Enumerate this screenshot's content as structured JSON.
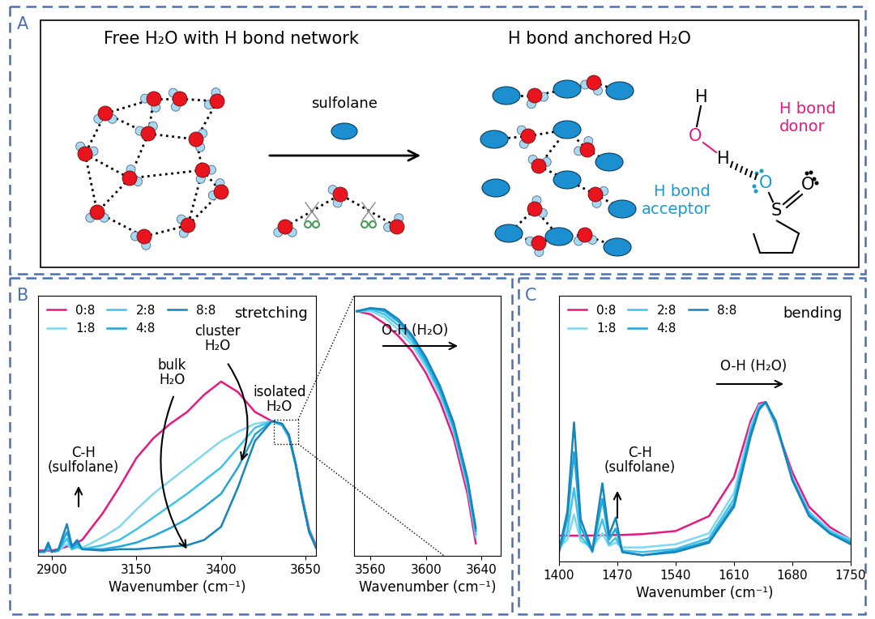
{
  "diagram": {
    "panel_labels": [
      "A",
      "B",
      "C"
    ],
    "left_title": "Free H₂O with H bond network",
    "right_title": "H bond anchored H₂O",
    "arrow_label": "sulfolane",
    "donor_label": "H bond\ndonor",
    "acceptor_label": "H bond\nacceptor",
    "structure_atoms": [
      "H",
      "O",
      "H",
      "O",
      "S",
      "O"
    ]
  },
  "chart_data": [
    {
      "type": "line",
      "title": "stretching",
      "x_label": "Wavenumber (cm⁻¹)",
      "x": [
        2860,
        2880,
        2890,
        2900,
        2920,
        2945,
        2960,
        2975,
        2990,
        3050,
        3100,
        3150,
        3200,
        3250,
        3300,
        3350,
        3400,
        3450,
        3500,
        3550,
        3580,
        3600,
        3620,
        3640,
        3660,
        3680
      ],
      "series": [
        {
          "name": "0:8",
          "color": "#e5197f",
          "values": [
            0.02,
            0.02,
            0.02,
            0.02,
            0.03,
            0.05,
            0.06,
            0.08,
            0.1,
            0.3,
            0.5,
            0.72,
            0.87,
            0.98,
            1.07,
            1.2,
            1.3,
            1.22,
            1.07,
            1.0,
            0.97,
            0.88,
            0.68,
            0.42,
            0.18,
            0.06
          ]
        },
        {
          "name": "1:8",
          "color": "#7fd8f0",
          "values": [
            0.01,
            0.01,
            0.04,
            0.01,
            0.02,
            0.07,
            0.03,
            0.04,
            0.04,
            0.12,
            0.2,
            0.33,
            0.45,
            0.55,
            0.65,
            0.75,
            0.85,
            0.92,
            0.98,
            1.0,
            0.97,
            0.88,
            0.67,
            0.41,
            0.17,
            0.05
          ]
        },
        {
          "name": "2:8",
          "color": "#3fc3ea",
          "values": [
            0.01,
            0.01,
            0.05,
            0.01,
            0.02,
            0.11,
            0.03,
            0.05,
            0.03,
            0.06,
            0.1,
            0.18,
            0.27,
            0.36,
            0.45,
            0.55,
            0.65,
            0.8,
            0.95,
            1.0,
            0.97,
            0.88,
            0.67,
            0.4,
            0.17,
            0.05
          ]
        },
        {
          "name": "4:8",
          "color": "#1fa6da",
          "values": [
            0.01,
            0.01,
            0.06,
            0.01,
            0.02,
            0.16,
            0.04,
            0.07,
            0.03,
            0.03,
            0.05,
            0.08,
            0.13,
            0.19,
            0.26,
            0.35,
            0.45,
            0.65,
            0.9,
            1.0,
            0.98,
            0.89,
            0.67,
            0.4,
            0.16,
            0.05
          ]
        },
        {
          "name": "8:8",
          "color": "#1684bd",
          "values": [
            0.01,
            0.02,
            0.08,
            0.01,
            0.03,
            0.22,
            0.05,
            0.1,
            0.03,
            0.02,
            0.03,
            0.03,
            0.04,
            0.05,
            0.06,
            0.1,
            0.2,
            0.5,
            0.85,
            1.0,
            0.98,
            0.9,
            0.68,
            0.4,
            0.16,
            0.04
          ]
        }
      ],
      "xlim": [
        2860,
        3680
      ],
      "xticks": [
        2900,
        3150,
        3400,
        3650
      ],
      "ylim": [
        -0.02,
        1.95
      ],
      "yticks": [],
      "tick_labels": "x",
      "grid": false,
      "legend": "upper left",
      "annotations": [
        "C-H\n(sulfolane)",
        "bulk\nH₂O",
        "cluster\nH₂O",
        "isolated\nH₂O"
      ]
    },
    {
      "type": "line",
      "x_label": "Wavenumber (cm⁻¹)",
      "x": [
        3550,
        3560,
        3570,
        3580,
        3590,
        3600,
        3610,
        3620,
        3630,
        3636
      ],
      "series": [
        {
          "color": "#e5197f",
          "values": [
            0.995,
            0.99,
            0.975,
            0.955,
            0.93,
            0.895,
            0.85,
            0.79,
            0.7,
            0.62
          ]
        },
        {
          "color": "#7fd8f0",
          "values": [
            0.995,
            0.995,
            0.985,
            0.965,
            0.94,
            0.905,
            0.86,
            0.8,
            0.71,
            0.63
          ]
        },
        {
          "color": "#3fc3ea",
          "values": [
            0.995,
            0.998,
            0.99,
            0.972,
            0.946,
            0.91,
            0.865,
            0.805,
            0.715,
            0.635
          ]
        },
        {
          "color": "#1fa6da",
          "values": [
            0.995,
            1.0,
            0.995,
            0.978,
            0.952,
            0.915,
            0.87,
            0.81,
            0.72,
            0.64
          ]
        },
        {
          "color": "#1684bd",
          "values": [
            0.995,
            1.0,
            0.998,
            0.982,
            0.956,
            0.92,
            0.875,
            0.815,
            0.725,
            0.645
          ]
        }
      ],
      "xlim": [
        3548,
        3654
      ],
      "xticks": [
        3560,
        3600,
        3640
      ],
      "ylim": [
        0.6,
        1.02
      ],
      "yticks": [],
      "tick_labels": "x",
      "grid": false,
      "annotations": [
        "O-H (H₂O)"
      ]
    },
    {
      "type": "line",
      "title": "bending",
      "x_label": "Wavenumber (cm⁻¹)",
      "x": [
        1400,
        1410,
        1418,
        1426,
        1440,
        1452,
        1460,
        1468,
        1476,
        1500,
        1540,
        1580,
        1610,
        1630,
        1640,
        1648,
        1660,
        1680,
        1700,
        1725,
        1750
      ],
      "series": [
        {
          "name": "0:8",
          "color": "#e5197f",
          "values": [
            0.145,
            0.145,
            0.145,
            0.145,
            0.146,
            0.147,
            0.148,
            0.15,
            0.15,
            0.155,
            0.175,
            0.27,
            0.52,
            0.88,
            0.99,
            1.0,
            0.85,
            0.55,
            0.33,
            0.2,
            0.12
          ]
        },
        {
          "name": "1:8",
          "color": "#7fd8f0",
          "values": [
            0.07,
            0.12,
            0.28,
            0.11,
            0.07,
            0.16,
            0.08,
            0.1,
            0.07,
            0.07,
            0.09,
            0.16,
            0.42,
            0.85,
            0.98,
            0.99,
            0.85,
            0.52,
            0.3,
            0.18,
            0.12
          ]
        },
        {
          "name": "2:8",
          "color": "#3fc3ea",
          "values": [
            0.05,
            0.17,
            0.45,
            0.14,
            0.05,
            0.25,
            0.09,
            0.13,
            0.05,
            0.04,
            0.06,
            0.13,
            0.38,
            0.82,
            0.97,
            1.0,
            0.86,
            0.51,
            0.29,
            0.17,
            0.11
          ]
        },
        {
          "name": "4:8",
          "color": "#1fa6da",
          "values": [
            0.04,
            0.25,
            0.68,
            0.2,
            0.04,
            0.38,
            0.12,
            0.19,
            0.04,
            0.02,
            0.05,
            0.11,
            0.35,
            0.8,
            0.96,
            1.0,
            0.87,
            0.5,
            0.28,
            0.16,
            0.1
          ]
        },
        {
          "name": "8:8",
          "color": "#1684bd",
          "values": [
            0.05,
            0.3,
            0.87,
            0.25,
            0.05,
            0.48,
            0.15,
            0.26,
            0.04,
            0.02,
            0.04,
            0.1,
            0.33,
            0.78,
            0.95,
            1.0,
            0.88,
            0.5,
            0.27,
            0.16,
            0.09
          ]
        }
      ],
      "xlim": [
        1400,
        1750
      ],
      "xticks": [
        1400,
        1470,
        1540,
        1610,
        1680,
        1750
      ],
      "ylim": [
        -0.02,
        1.68
      ],
      "yticks": [],
      "tick_labels": "x",
      "grid": false,
      "legend": "upper left",
      "annotations": [
        "O-H (H₂O)",
        "C-H\n(sulfolane)"
      ]
    }
  ]
}
